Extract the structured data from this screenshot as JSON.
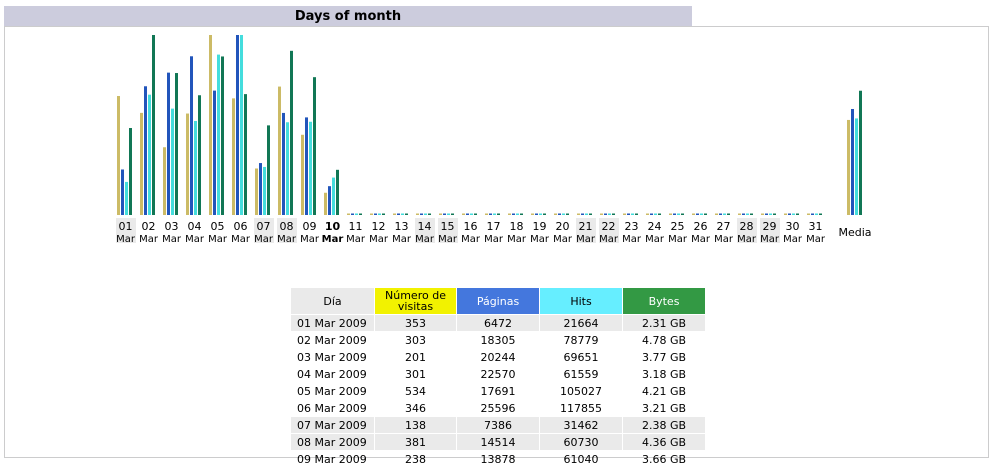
{
  "section": {
    "title": "Days of month"
  },
  "colors": {
    "visits": "#ccbb66",
    "pages": "#2255bb",
    "hits": "#44dddd",
    "bytes": "#117755",
    "visits_header": "#f2f200",
    "pages_header": "#4477dd",
    "hits_header": "#66eeff",
    "bytes_header": "#339944"
  },
  "chart_data": {
    "type": "bar",
    "title": "Days of month",
    "categories": [
      {
        "day": "01",
        "month": "Mar",
        "weekend": true
      },
      {
        "day": "02",
        "month": "Mar"
      },
      {
        "day": "03",
        "month": "Mar"
      },
      {
        "day": "04",
        "month": "Mar"
      },
      {
        "day": "05",
        "month": "Mar"
      },
      {
        "day": "06",
        "month": "Mar"
      },
      {
        "day": "07",
        "month": "Mar",
        "weekend": true
      },
      {
        "day": "08",
        "month": "Mar",
        "weekend": true
      },
      {
        "day": "09",
        "month": "Mar"
      },
      {
        "day": "10",
        "month": "Mar",
        "today": true
      },
      {
        "day": "11",
        "month": "Mar"
      },
      {
        "day": "12",
        "month": "Mar"
      },
      {
        "day": "13",
        "month": "Mar"
      },
      {
        "day": "14",
        "month": "Mar",
        "weekend": true
      },
      {
        "day": "15",
        "month": "Mar",
        "weekend": true
      },
      {
        "day": "16",
        "month": "Mar"
      },
      {
        "day": "17",
        "month": "Mar"
      },
      {
        "day": "18",
        "month": "Mar"
      },
      {
        "day": "19",
        "month": "Mar"
      },
      {
        "day": "20",
        "month": "Mar"
      },
      {
        "day": "21",
        "month": "Mar",
        "weekend": true
      },
      {
        "day": "22",
        "month": "Mar",
        "weekend": true
      },
      {
        "day": "23",
        "month": "Mar"
      },
      {
        "day": "24",
        "month": "Mar"
      },
      {
        "day": "25",
        "month": "Mar"
      },
      {
        "day": "26",
        "month": "Mar"
      },
      {
        "day": "27",
        "month": "Mar"
      },
      {
        "day": "28",
        "month": "Mar",
        "weekend": true
      },
      {
        "day": "29",
        "month": "Mar",
        "weekend": true
      },
      {
        "day": "30",
        "month": "Mar"
      },
      {
        "day": "31",
        "month": "Mar"
      }
    ],
    "average_label": "Media",
    "series": [
      {
        "key": "visits",
        "values": [
          353,
          303,
          201,
          301,
          534,
          346,
          138,
          381,
          238,
          66,
          0,
          0,
          0,
          0,
          0,
          0,
          0,
          0,
          0,
          0,
          0,
          0,
          0,
          0,
          0,
          0,
          0,
          0,
          0,
          0,
          0
        ],
        "average": 282
      },
      {
        "key": "pages",
        "values": [
          6472,
          18305,
          20244,
          22570,
          17691,
          25596,
          7386,
          14514,
          13878,
          4100,
          0,
          0,
          0,
          0,
          0,
          0,
          0,
          0,
          0,
          0,
          0,
          0,
          0,
          0,
          0,
          0,
          0,
          0,
          0,
          0,
          0
        ],
        "average": 15073
      },
      {
        "key": "hits",
        "values": [
          21664,
          78779,
          69651,
          61559,
          105027,
          117855,
          31462,
          60730,
          61040,
          24500,
          0,
          0,
          0,
          0,
          0,
          0,
          0,
          0,
          0,
          0,
          0,
          0,
          0,
          0,
          0,
          0,
          0,
          0,
          0,
          0,
          0
        ],
        "average": 63227
      },
      {
        "key": "bytes",
        "values": [
          2.31,
          4.78,
          3.77,
          3.18,
          4.21,
          3.21,
          2.38,
          4.36,
          3.66,
          1.2,
          0,
          0,
          0,
          0,
          0,
          0,
          0,
          0,
          0,
          0,
          0,
          0,
          0,
          0,
          0,
          0,
          0,
          0,
          0,
          0,
          0
        ],
        "average": 3.3
      }
    ]
  },
  "table": {
    "headers": {
      "day": "Día",
      "visits": "Número de visitas",
      "pages": "Páginas",
      "hits": "Hits",
      "bytes": "Bytes"
    },
    "rows": [
      {
        "day": "01 Mar 2009",
        "visits": "353",
        "pages": "6472",
        "hits": "21664",
        "bytes": "2.31 GB",
        "weekend": true
      },
      {
        "day": "02 Mar 2009",
        "visits": "303",
        "pages": "18305",
        "hits": "78779",
        "bytes": "4.78 GB"
      },
      {
        "day": "03 Mar 2009",
        "visits": "201",
        "pages": "20244",
        "hits": "69651",
        "bytes": "3.77 GB"
      },
      {
        "day": "04 Mar 2009",
        "visits": "301",
        "pages": "22570",
        "hits": "61559",
        "bytes": "3.18 GB"
      },
      {
        "day": "05 Mar 2009",
        "visits": "534",
        "pages": "17691",
        "hits": "105027",
        "bytes": "4.21 GB"
      },
      {
        "day": "06 Mar 2009",
        "visits": "346",
        "pages": "25596",
        "hits": "117855",
        "bytes": "3.21 GB"
      },
      {
        "day": "07 Mar 2009",
        "visits": "138",
        "pages": "7386",
        "hits": "31462",
        "bytes": "2.38 GB",
        "weekend": true
      },
      {
        "day": "08 Mar 2009",
        "visits": "381",
        "pages": "14514",
        "hits": "60730",
        "bytes": "4.36 GB",
        "weekend": true
      },
      {
        "day": "09 Mar 2009",
        "visits": "238",
        "pages": "13878",
        "hits": "61040",
        "bytes": "3.66 GB"
      }
    ]
  }
}
